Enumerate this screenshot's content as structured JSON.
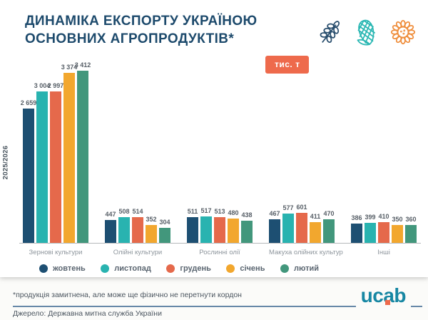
{
  "title": {
    "line1": "ДИНАМІКА ЕКСПОРТУ УКРАЇНОЮ",
    "line2": "ОСНОВНИХ АГРОПРОДУКТІВ*"
  },
  "unit_badge": "тис. т",
  "axis_label": "2025/2026",
  "header_icons": [
    "wheat-icon",
    "corn-icon",
    "sunflower-icon"
  ],
  "chart_data": {
    "type": "bar",
    "title": "Динаміка експорту Україною основних агропродуктів, тис. т",
    "unit": "тис. т",
    "season": "2025/2026",
    "categories": [
      "Зернові культури",
      "Олійні культури",
      "Рослинні олії",
      "Макуха олійних культур",
      "Інші"
    ],
    "series": [
      {
        "name": "жовтень",
        "color": "#1d4f72",
        "values": [
          2659,
          447,
          511,
          467,
          386
        ]
      },
      {
        "name": "листопад",
        "color": "#29b3b0",
        "values": [
          3004,
          508,
          517,
          577,
          399
        ]
      },
      {
        "name": "грудень",
        "color": "#e5694b",
        "values": [
          2997,
          514,
          513,
          601,
          410
        ]
      },
      {
        "name": "січень",
        "color": "#f2a72e",
        "values": [
          3374,
          352,
          480,
          411,
          350
        ]
      },
      {
        "name": "лютий",
        "color": "#42977c",
        "values": [
          3412,
          304,
          438,
          470,
          360
        ]
      }
    ],
    "ylim": [
      0,
      3500
    ],
    "grid": false,
    "value_labels": true,
    "legend_position": "bottom"
  },
  "footnote": "*продукція замитнена, але може ще фізично не перетнути кордон",
  "source": "Джерело: Державна митна служба України",
  "logo": {
    "pre": "uc",
    "a": "a",
    "post": "b"
  },
  "colors": {
    "title": "#1d4a6c",
    "badge": "#ee6a4c",
    "rule": "#6788a8",
    "logo": "#1787a3",
    "logo_accent": "#ee6a4c"
  }
}
